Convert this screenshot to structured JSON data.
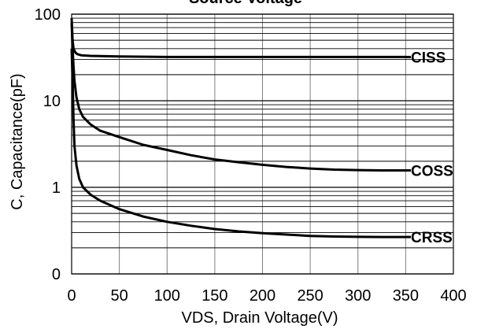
{
  "chart_data": {
    "type": "line",
    "title": "Source Voltage",
    "xlabel": "VDS, Drain Voltage(V)",
    "ylabel": "C, Capacitance(pF)",
    "xlim": [
      0,
      400
    ],
    "x_ticks": [
      0,
      50,
      100,
      150,
      200,
      250,
      300,
      350,
      400
    ],
    "x_tick_labels": [
      "0",
      "50",
      "100",
      "150",
      "200",
      "250",
      "300",
      "350",
      "400"
    ],
    "y_scale": "log",
    "y_ticks": [
      "100",
      "10",
      "1",
      "0"
    ],
    "grid": true,
    "line_color": "#000000",
    "series": [
      {
        "name": "CISS",
        "x": [
          0,
          1,
          2,
          4,
          6,
          10,
          20,
          50,
          100,
          150,
          200,
          250,
          300,
          350
        ],
        "y": [
          90,
          50,
          40,
          36,
          34.5,
          33.5,
          33,
          32.5,
          32,
          32,
          32,
          32,
          32,
          32
        ]
      },
      {
        "name": "COSS",
        "x": [
          0,
          1,
          2,
          3,
          5,
          8,
          12,
          20,
          30,
          50,
          75,
          100,
          125,
          150,
          175,
          200,
          225,
          250,
          275,
          300,
          325,
          350
        ],
        "y": [
          80,
          40,
          25,
          17,
          11,
          8,
          6.5,
          5.3,
          4.5,
          3.8,
          3.1,
          2.7,
          2.35,
          2.1,
          1.95,
          1.82,
          1.72,
          1.65,
          1.6,
          1.58,
          1.57,
          1.57
        ]
      },
      {
        "name": "CRSS",
        "x": [
          0,
          1,
          2,
          3,
          5,
          8,
          12,
          20,
          30,
          50,
          75,
          100,
          125,
          150,
          175,
          200,
          225,
          250,
          275,
          300,
          325,
          350
        ],
        "y": [
          40,
          18,
          6,
          3,
          1.8,
          1.25,
          1,
          0.82,
          0.7,
          0.56,
          0.46,
          0.4,
          0.36,
          0.33,
          0.31,
          0.295,
          0.285,
          0.275,
          0.27,
          0.268,
          0.267,
          0.267
        ]
      }
    ]
  }
}
